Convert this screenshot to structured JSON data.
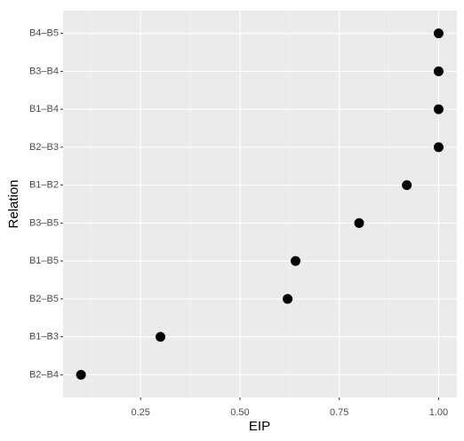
{
  "chart_data": {
    "type": "dot",
    "x_label": "EIP",
    "y_label": "Relation",
    "categories": [
      "B2–B4",
      "B1–B3",
      "B2–B5",
      "B1–B5",
      "B3–B5",
      "B1–B2",
      "B2–B3",
      "B1–B4",
      "B3–B4",
      "B4–B5"
    ],
    "values": [
      0.1,
      0.3,
      0.62,
      0.64,
      0.8,
      0.92,
      1.0,
      1.0,
      1.0,
      1.0
    ],
    "color": "#000000",
    "xlim": [
      0.055,
      1.046
    ],
    "xticks": [
      {
        "value": 0.25,
        "label": "0.25"
      },
      {
        "value": 0.5,
        "label": "0.50"
      },
      {
        "value": 0.75,
        "label": "0.75"
      },
      {
        "value": 1,
        "label": "1.00"
      }
    ],
    "grid": true
  }
}
